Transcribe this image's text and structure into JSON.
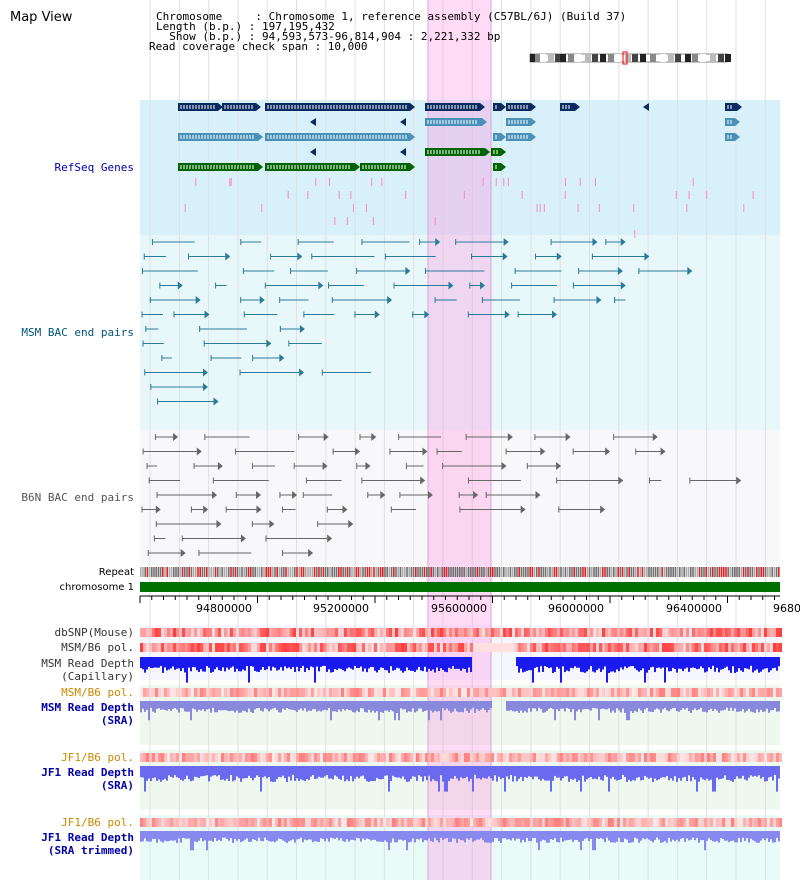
{
  "page": {
    "title": "Map View"
  },
  "info": {
    "chromosome": "Chromosome     : Chromosome 1, reference assembly (C57BL/6J) (Build 37)",
    "length": "Length (b.p.) : 197,195,432",
    "show": "  Show (b.p.) : 94,593,573-96,814,904 : 2,221,332 bp",
    "coverage": "Read coverage check span : 10,000"
  },
  "tracks": {
    "refseq": {
      "label": "RefSeq Genes",
      "color": "#0000aa"
    },
    "msm_bac": {
      "label": "MSM BAC end pairs",
      "color": "#005577"
    },
    "b6n_bac": {
      "label": "B6N BAC end pairs",
      "color": "#555555"
    },
    "repeat": {
      "label": "Repeat"
    },
    "chromosome": {
      "label": "chromosome 1"
    },
    "dbsnp": {
      "label": "dbSNP(Mouse)"
    },
    "msm_b6_pol_cap": {
      "label": "MSM/B6 pol."
    },
    "msm_depth_cap": {
      "line1": "MSM Read Depth",
      "line2": "(Capillary)"
    },
    "msm_b6_pol_sra": {
      "label": "MSM/B6 pol.",
      "color": "#cc8800"
    },
    "msm_depth_sra": {
      "line1": "MSM Read Depth",
      "line2": "(SRA)",
      "color": "#0000aa"
    },
    "jf1_b6_pol": {
      "label": "JF1/B6 pol.",
      "color": "#cc8800"
    },
    "jf1_depth": {
      "line1": "JF1 Read Depth",
      "line2": "(SRA)",
      "color": "#0000aa"
    },
    "jf1_b6_pol_trim": {
      "label": "JF1/B6 pol.",
      "color": "#cc8800"
    },
    "jf1_depth_trim": {
      "line1": "JF1 Read Depth",
      "line2": "(SRA trimmed)",
      "color": "#0000aa"
    }
  },
  "axis": {
    "ticks": [
      "94800000",
      "95200000",
      "95600000",
      "96000000",
      "96400000",
      "9680"
    ]
  },
  "highlight": {
    "color": "#ff88dd"
  }
}
